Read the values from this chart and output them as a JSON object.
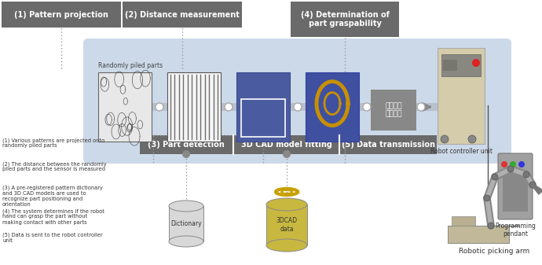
{
  "bg_color": "#ffffff",
  "header_bg": "#6a6a6a",
  "header_text_color": "#ffffff",
  "flow_bg": "#ccd9e8",
  "step_labels": [
    "(1) Pattern projection",
    "(2) Distance measurement",
    "(4) Determination of\npart graspability"
  ],
  "bottom_labels": [
    "(3) Part detection",
    "3D CAD model fitting",
    "(5) Data transmission"
  ],
  "notes": [
    "(1) Various patterns are projected onto\nrandomly piled parts",
    "(2) The distance between the randomly\npiled parts and the sensor is measured",
    "(3) A pre-registered pattern dictionary\nand 3D CAD models are used to\nrecognize part positioning and\norientation",
    "(4) The system determines if the robot\nhand can grasp the part without\nmaking contact with other parts",
    "(5) Data is sent to the robot controller\nunit"
  ],
  "kanji_text": "位置姿勢\n計測結果",
  "robot_controller_label": "Robot controller unit",
  "programming_pendant_label": "Programming\npendant",
  "robotic_arm_label": "Robotic picking arm",
  "randomly_label": "Randomly piled parts",
  "dictionary_label": "Dictionary",
  "cad_label": "3DCAD\ndata"
}
